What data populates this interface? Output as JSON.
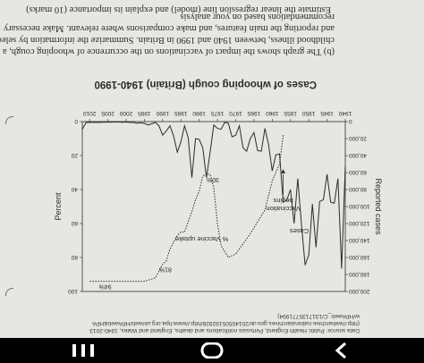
{
  "document": {
    "question_intro": "Estimate the linear regression line (model) and explain its importance (10 marks)",
    "question_b": [
      "(b) The graph shows the impact of vaccinations on the occurrence of whooping cough, a",
      "childhood illness, between 1940 and 1990 in Britain. Summarize the information by selecting",
      "and reporting the main features, and make comparisons where relevant. Make necessary",
      "recommendations based on your analysis"
    ],
    "source_lines": [
      "Data source: Public Health England, Pertussis notifications and deaths, England and Wales, 1940-2013",
      "(http://webarchive.nationalarchives.gov.uk/20140505192926/http://www.hpa.org.uk/web/HPAweb&HPA",
      "w/HPAweb_C/1317135771994)"
    ]
  },
  "chart_data": {
    "type": "line",
    "title": "Cases of whooping cough (Britain) 1940-1990",
    "ylabel_left": "Reported cases",
    "ylabel_right": "Percent",
    "x_ticks": [
      "1940",
      "1945",
      "1950",
      "1955",
      "1960",
      "1965",
      "1970",
      "1975",
      "1980",
      "1985",
      "1990",
      "1995",
      "2000",
      "2005",
      "2010"
    ],
    "y_ticks_cases": [
      "0",
      "20,000",
      "40,000",
      "60,000",
      "80,000",
      "100,000",
      "120,000",
      "140,000",
      "160,000",
      "180,000",
      "200,000"
    ],
    "y_ticks_percent": [
      "0",
      "20",
      "40",
      "60",
      "80",
      "100"
    ],
    "xlim": [
      1940,
      2012
    ],
    "ylim_cases": [
      0,
      200000
    ],
    "ylim_percent": [
      0,
      100
    ],
    "series": [
      {
        "name": "Cases",
        "x": [
          1940,
          1941,
          1942,
          1943,
          1944,
          1945,
          1946,
          1947,
          1948,
          1949,
          1950,
          1951,
          1952,
          1953,
          1954,
          1955,
          1956,
          1957,
          1958,
          1959,
          1960,
          1961,
          1962,
          1963,
          1964,
          1965,
          1966,
          1967,
          1968,
          1969,
          1970,
          1971,
          1972,
          1973,
          1974,
          1975,
          1976,
          1977,
          1978,
          1979,
          1980,
          1981,
          1982,
          1983,
          1984,
          1985,
          1986,
          1987,
          1988,
          1989,
          1990,
          1991,
          1992,
          1993,
          1994,
          1995,
          1996,
          1997,
          1998,
          1999,
          2000,
          2001,
          2002,
          2003,
          2004,
          2005,
          2006,
          2007,
          2008,
          2009,
          2010,
          2011,
          2012
        ],
        "values": [
          53000,
          173000,
          67000,
          96000,
          95000,
          62000,
          92000,
          94000,
          148000,
          97000,
          157000,
          169000,
          121000,
          67000,
          120000,
          80000,
          92000,
          95000,
          38000,
          39000,
          58000,
          27000,
          8000,
          35000,
          34000,
          13000,
          20000,
          35000,
          31000,
          5000,
          16000,
          18000,
          2000,
          1000,
          9000,
          8000,
          4000,
          36000,
          66000,
          31000,
          21000,
          20000,
          66000,
          19000,
          5000,
          24000,
          36000,
          17000,
          5000,
          11000,
          16000,
          5000,
          1000,
          2500,
          4000,
          2000,
          1500,
          2000,
          1000,
          1000,
          500,
          800,
          500,
          500,
          600,
          600,
          500,
          900,
          1000,
          1000,
          900,
          1200,
          9000
        ]
      },
      {
        "name": "% Vaccine uptake",
        "x": [
          1957,
          1958,
          1960,
          1962,
          1964,
          1966,
          1968,
          1970,
          1972,
          1974,
          1975,
          1976,
          1977,
          1978,
          1979,
          1980,
          1981,
          1982,
          1983,
          1984,
          1985,
          1986,
          1987,
          1988,
          1989,
          1990,
          1992,
          1995,
          1998,
          2000,
          2004,
          2008,
          2010
        ],
        "values": [
          8,
          25,
          35,
          52,
          59,
          66,
          72,
          78,
          80,
          73,
          60,
          39,
          31,
          31,
          32,
          41,
          46,
          53,
          59,
          65,
          65,
          67,
          71,
          75,
          82,
          84,
          92,
          94,
          94,
          94,
          94,
          94,
          94
        ]
      }
    ],
    "annotations": [
      {
        "text": "Cases",
        "series": "Cases"
      },
      {
        "text": "Vaccination",
        "line2": "begins"
      },
      {
        "text": "% Vaccine uptake",
        "series": "% Vaccine uptake"
      },
      {
        "text": "30%"
      },
      {
        "text": "81%"
      },
      {
        "text": "94%"
      }
    ]
  },
  "colors": {
    "paper": "#e6e6e3",
    "ink": "#2c2c2c",
    "navbar": "#000000",
    "nav_icon": "#ffffff"
  },
  "navbar_icons": [
    "recent-apps-icon",
    "home-icon",
    "back-icon"
  ]
}
